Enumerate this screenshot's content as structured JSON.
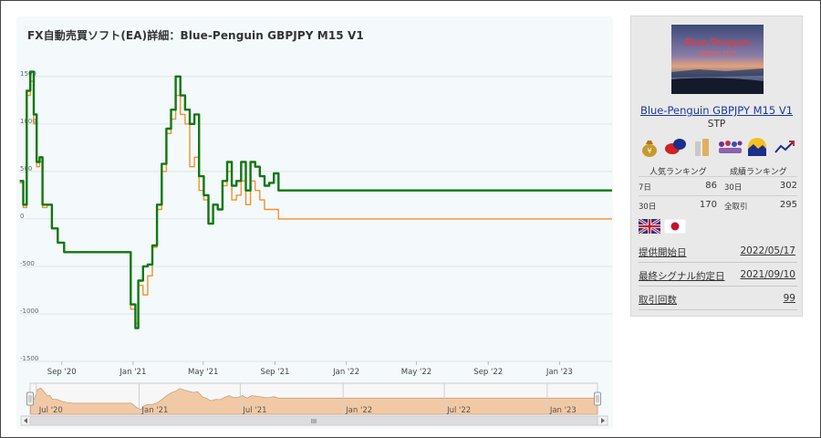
{
  "chart": {
    "title": "FX自動売買ソフト(EA)詳細：Blue-Penguin GBPJPY M15 V1",
    "colors": {
      "profit_line": "#117711",
      "second_line": "#f0922f",
      "navigator_fill": "#f2c9a5",
      "navigator_bg": "#f7f7f7",
      "grid": "#dde5e9",
      "panel_bg": "#f4f9fb"
    },
    "navigator_labels": [
      "Jul '20",
      "Jan '21",
      "Jul '21",
      "Jan '22",
      "Jul '22",
      "Jan '23"
    ],
    "scrollbar_grip": "III"
  },
  "chart_data": {
    "type": "line",
    "title": "FX自動売買ソフト(EA)詳細：Blue-Penguin GBPJPY M15 V1",
    "xlabel": "",
    "ylabel": "",
    "y_ticks": [
      "1500",
      "1000",
      "500",
      "0",
      "-500",
      "-1000",
      "-1500"
    ],
    "ylim": [
      -1500,
      1700
    ],
    "x_ticks": [
      "Sep '20",
      "Jan '21",
      "May '21",
      "Sep '21",
      "Jan '22",
      "May '22",
      "Sep '22",
      "Jan '23"
    ],
    "xlim": [
      "2020-06-20",
      "2023-04-01"
    ],
    "grid": true,
    "series": [
      {
        "color": "#117711",
        "x": [
          "2020-06-21",
          "2020-06-27",
          "2020-07-03",
          "2020-07-09",
          "2020-07-15",
          "2020-07-20",
          "2020-07-25",
          "2020-07-30",
          "2020-08-07",
          "2020-08-15",
          "2020-08-25",
          "2020-09-05",
          "2020-10-01",
          "2020-11-01",
          "2020-12-01",
          "2020-12-18",
          "2020-12-28",
          "2021-01-05",
          "2021-01-10",
          "2021-01-18",
          "2021-01-26",
          "2021-02-03",
          "2021-02-11",
          "2021-02-19",
          "2021-02-27",
          "2021-03-07",
          "2021-03-15",
          "2021-03-23",
          "2021-03-31",
          "2021-04-08",
          "2021-04-16",
          "2021-04-24",
          "2021-05-02",
          "2021-05-10",
          "2021-05-18",
          "2021-05-26",
          "2021-06-03",
          "2021-06-11",
          "2021-06-19",
          "2021-06-27",
          "2021-07-05",
          "2021-07-13",
          "2021-07-21",
          "2021-07-29",
          "2021-08-06",
          "2021-08-14",
          "2021-08-22",
          "2021-08-30",
          "2021-09-07",
          "2021-09-15",
          "2021-09-21",
          "2022-01-01",
          "2022-06-01",
          "2023-04-01"
        ],
        "values": [
          400,
          150,
          1350,
          1550,
          1100,
          600,
          650,
          150,
          150,
          -100,
          -250,
          -350,
          -350,
          -350,
          -350,
          -350,
          -900,
          -1150,
          -650,
          -500,
          -480,
          -280,
          150,
          580,
          950,
          1150,
          1500,
          1300,
          1150,
          1000,
          1100,
          450,
          250,
          -50,
          150,
          100,
          400,
          600,
          350,
          400,
          600,
          300,
          600,
          550,
          450,
          350,
          380,
          480,
          300,
          300,
          300,
          300,
          300,
          300
        ]
      },
      {
        "color": "#f0922f",
        "x": [
          "2020-06-21",
          "2020-06-27",
          "2020-07-03",
          "2020-07-09",
          "2020-07-15",
          "2020-07-20",
          "2020-07-25",
          "2020-07-30",
          "2020-08-07",
          "2020-08-15",
          "2020-08-25",
          "2020-09-05",
          "2020-10-01",
          "2020-11-01",
          "2020-12-01",
          "2020-12-18",
          "2020-12-28",
          "2021-01-05",
          "2021-01-10",
          "2021-01-18",
          "2021-01-26",
          "2021-02-03",
          "2021-02-11",
          "2021-02-19",
          "2021-02-27",
          "2021-03-07",
          "2021-03-15",
          "2021-03-23",
          "2021-03-31",
          "2021-04-08",
          "2021-04-16",
          "2021-04-24",
          "2021-05-02",
          "2021-05-10",
          "2021-05-18",
          "2021-05-26",
          "2021-06-03",
          "2021-06-11",
          "2021-06-19",
          "2021-06-27",
          "2021-07-05",
          "2021-07-13",
          "2021-07-21",
          "2021-07-29",
          "2021-08-06",
          "2021-08-14",
          "2021-08-22",
          "2021-08-30",
          "2021-09-07",
          "2021-09-15",
          "2021-09-21",
          "2022-01-01",
          "2022-06-01",
          "2023-04-01"
        ],
        "values": [
          380,
          120,
          1300,
          1450,
          1000,
          550,
          600,
          120,
          150,
          -100,
          -250,
          -350,
          -350,
          -350,
          -350,
          -350,
          -950,
          -1100,
          -700,
          -800,
          -600,
          -300,
          100,
          500,
          900,
          1050,
          1300,
          1100,
          1000,
          550,
          650,
          300,
          200,
          -50,
          150,
          100,
          350,
          500,
          200,
          250,
          400,
          150,
          400,
          300,
          200,
          100,
          100,
          100,
          0,
          0,
          0,
          0,
          0,
          0
        ]
      }
    ]
  },
  "sidebar": {
    "image": {
      "title": "Blue Penguin",
      "subtitle": "GBPJPY M15"
    },
    "ea_name": "Blue-Penguin GBPJPY M15 V1",
    "ea_type": "STP",
    "icons": [
      "money-bag-icon",
      "chat-bubbles-icon",
      "bottles-icon",
      "audience-icon",
      "sunrise-icon",
      "trend-up-icon"
    ],
    "ranking": {
      "popular_label": "人気ランキング",
      "performance_label": "成績ランキング",
      "rows": [
        {
          "k1": "7日",
          "v1": "86",
          "k2": "30日",
          "v2": "302"
        },
        {
          "k1": "30日",
          "v1": "170",
          "k2": "全取引",
          "v2": "295"
        }
      ]
    },
    "flags": [
      "uk-flag-icon",
      "japan-flag-icon"
    ],
    "info": [
      {
        "label": "提供開始日",
        "value": "2022/05/17"
      },
      {
        "label": "最終シグナル約定日",
        "value": "2021/09/10"
      },
      {
        "label": "取引回数",
        "value": "99"
      }
    ]
  }
}
